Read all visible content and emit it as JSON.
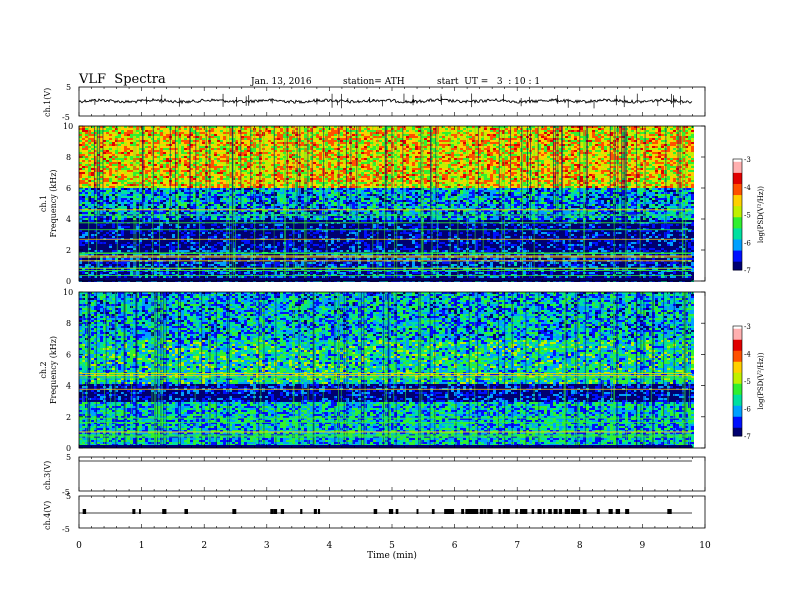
{
  "header": {
    "title": "VLF  Spectra",
    "date": "Jan. 13, 2016",
    "station": "station= ATH",
    "start": "start  UT =   3  : 10 : 1"
  },
  "chart_data": [
    {
      "type": "line",
      "panel": "ch1-waveform",
      "ylabel": "ch.1(V)",
      "ylim": [
        -5,
        5
      ],
      "yticks": [
        "5",
        "-5"
      ],
      "xlim": [
        0,
        10
      ]
    },
    {
      "type": "heatmap",
      "panel": "ch1-spectrogram",
      "ylabel": "ch.1\nFrequency (kHz)",
      "ylabel_lines": [
        "ch.1",
        "Frequency  (kHz)"
      ],
      "ylim": [
        0,
        10
      ],
      "yticks": [
        "0",
        "2",
        "4",
        "6",
        "8",
        "10"
      ],
      "xlim": [
        0,
        9.8
      ],
      "colorbar": {
        "label": "log(PSD(V²/Hz))",
        "range": [
          -7,
          -3
        ],
        "ticks": [
          "-3",
          "-4",
          "-5",
          "-6",
          "-7"
        ]
      },
      "bands": [
        {
          "from": 0,
          "to": 2,
          "level": -6.5
        },
        {
          "from": 2,
          "to": 4,
          "level": -6.8
        },
        {
          "from": 4,
          "to": 6,
          "level": -6.0
        },
        {
          "from": 6,
          "to": 10,
          "level": -4.5
        }
      ]
    },
    {
      "type": "heatmap",
      "panel": "ch2-spectrogram",
      "ylabel_lines": [
        "ch.2",
        "Frequency  (kHz)"
      ],
      "ylim": [
        0,
        10
      ],
      "yticks": [
        "0",
        "2",
        "4",
        "6",
        "8",
        "10"
      ],
      "xlim": [
        0,
        9.8
      ],
      "colorbar": {
        "label": "log(PSD(V²/Hz))",
        "range": [
          -7,
          -3
        ],
        "ticks": [
          "-3",
          "-4",
          "-5",
          "-6",
          "-7"
        ]
      },
      "bands": [
        {
          "from": 0,
          "to": 3,
          "level": -5.8
        },
        {
          "from": 3,
          "to": 4.2,
          "level": -6.7
        },
        {
          "from": 4.2,
          "to": 7,
          "level": -5.6
        },
        {
          "from": 7,
          "to": 10,
          "level": -5.9
        }
      ]
    },
    {
      "type": "line",
      "panel": "ch3-waveform",
      "ylabel": "ch.3(V)",
      "ylim": [
        -5,
        5
      ],
      "yticks": [
        "5",
        "-5"
      ]
    },
    {
      "type": "line",
      "panel": "ch4-waveform",
      "ylabel": "ch.4(V)",
      "ylim": [
        -5,
        5
      ],
      "yticks": [
        "5",
        "-5"
      ]
    }
  ],
  "xaxis": {
    "label": "Time  (min)",
    "ticks": [
      "0",
      "1",
      "2",
      "3",
      "4",
      "5",
      "6",
      "7",
      "8",
      "9",
      "10"
    ]
  },
  "colors": {
    "scale": [
      "#000070",
      "#0010ff",
      "#00a0ff",
      "#00e0a0",
      "#30f030",
      "#c0f000",
      "#ffd000",
      "#ff5000",
      "#e00000",
      "#ffb0b0",
      "#ffffff"
    ]
  }
}
